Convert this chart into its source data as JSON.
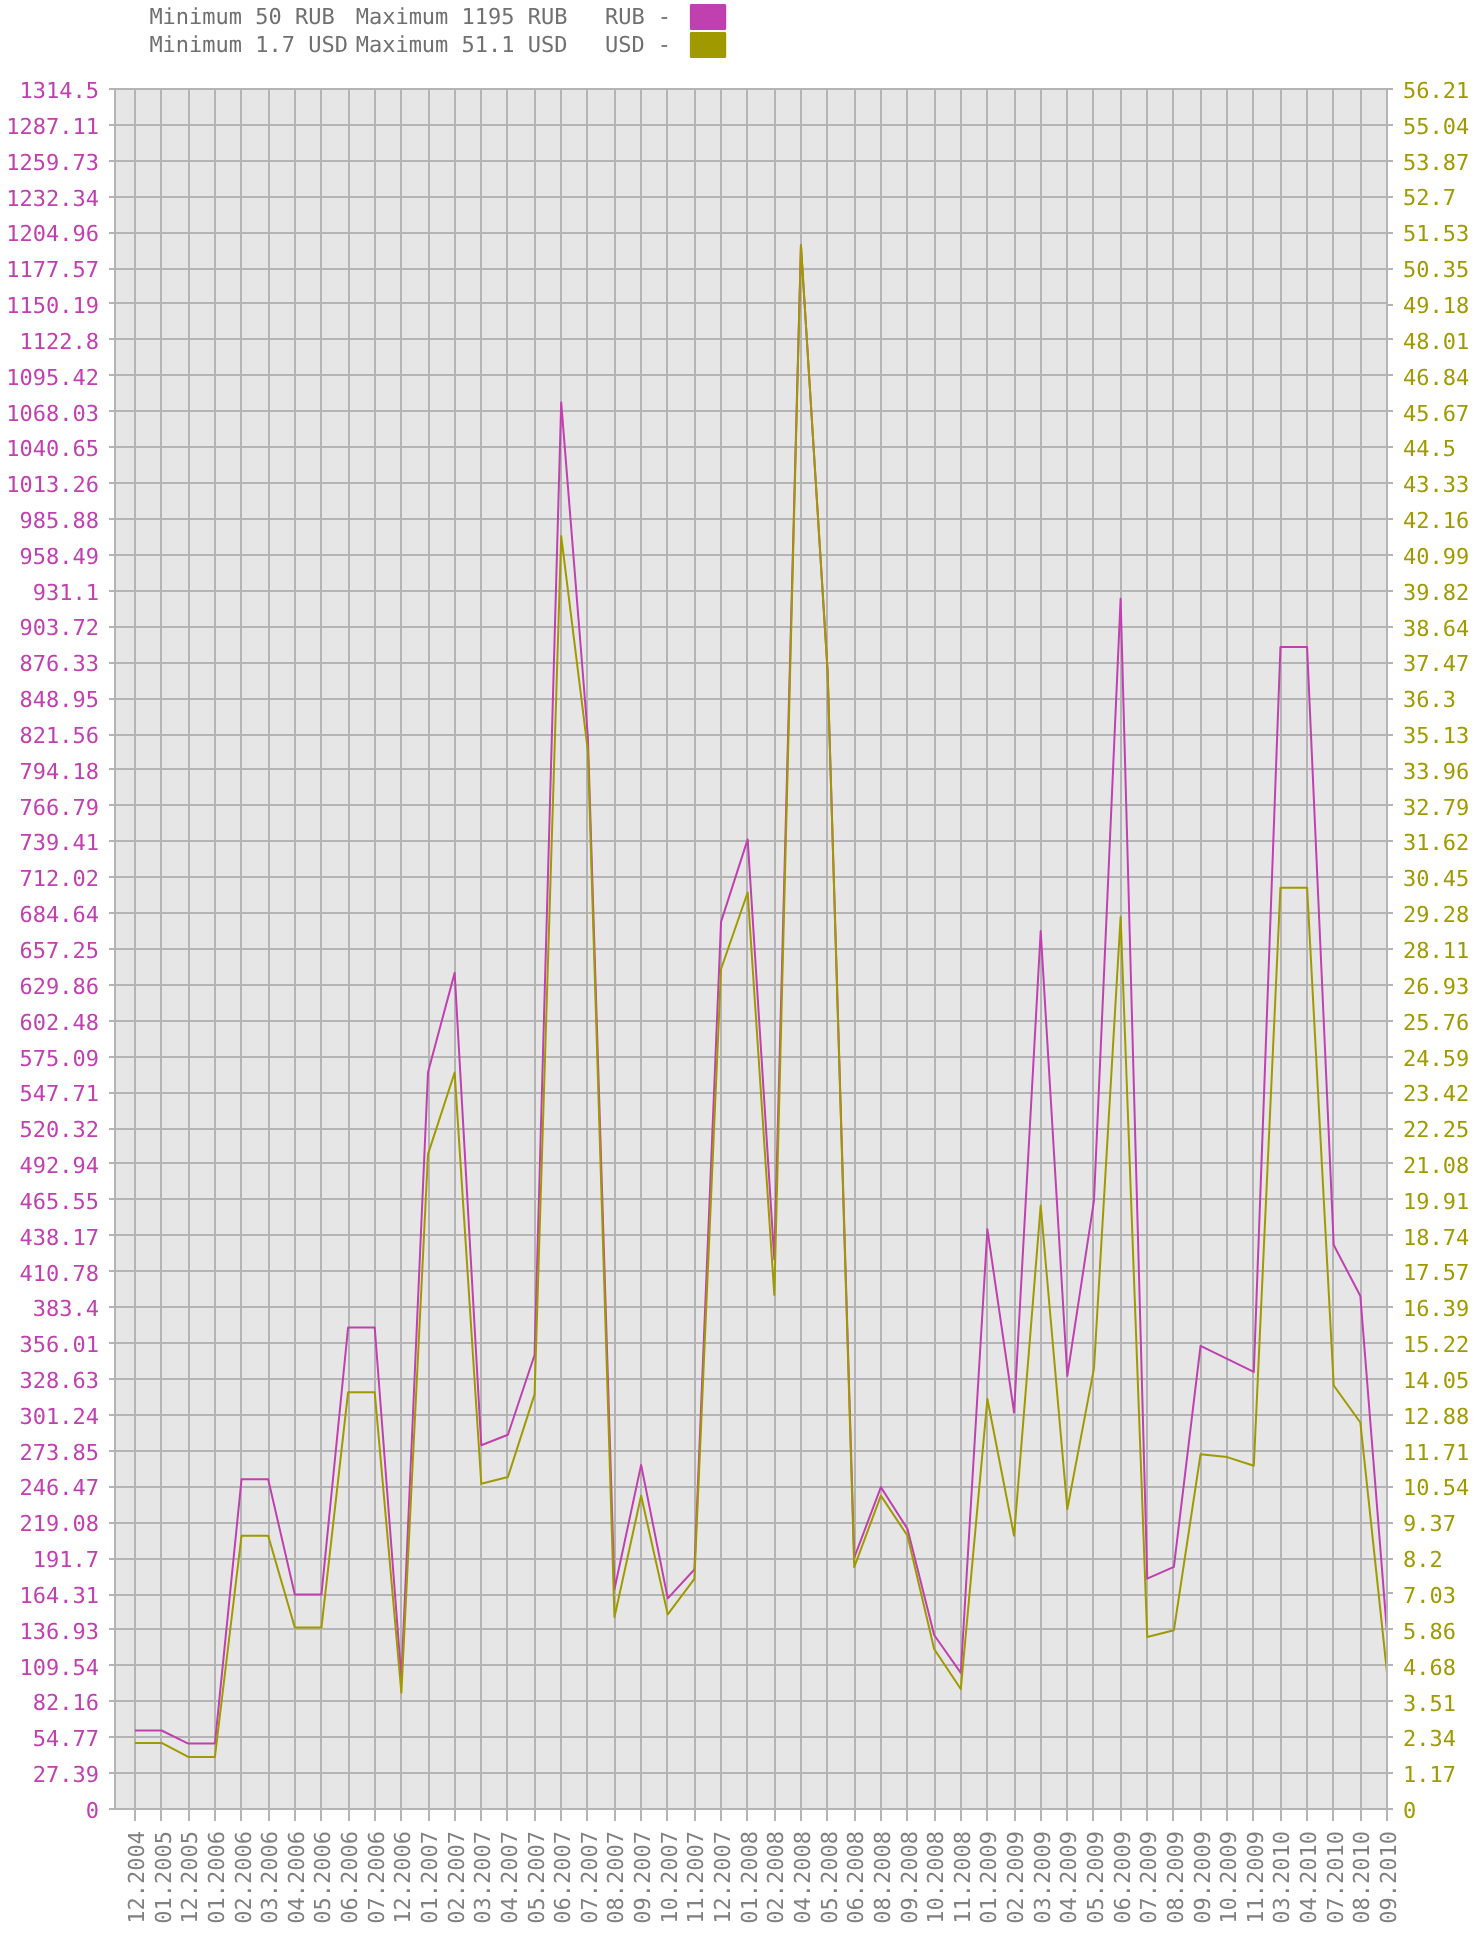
{
  "chart_data": {
    "type": "line",
    "annotations": [
      "Minimum 50 RUB",
      "Minimum 1.7 USD",
      "Maximum 1195 RUB",
      "Maximum 51.1 USD"
    ],
    "categories": [
      "12.2004",
      "01.2005",
      "12.2005",
      "01.2006",
      "02.2006",
      "03.2006",
      "04.2006",
      "05.2006",
      "06.2006",
      "07.2006",
      "12.2006",
      "01.2007",
      "02.2007",
      "03.2007",
      "04.2007",
      "05.2007",
      "06.2007",
      "07.2007",
      "08.2007",
      "09.2007",
      "10.2007",
      "11.2007",
      "12.2007",
      "01.2008",
      "02.2008",
      "04.2008",
      "05.2008",
      "06.2008",
      "08.2008",
      "09.2008",
      "10.2008",
      "11.2008",
      "01.2009",
      "02.2009",
      "03.2009",
      "04.2009",
      "05.2009",
      "06.2009",
      "07.2009",
      "08.2009",
      "09.2009",
      "10.2009",
      "11.2009",
      "03.2010",
      "04.2010",
      "07.2010",
      "08.2010",
      "09.2010"
    ],
    "series": [
      {
        "name": "RUB -",
        "color": "#c040b0",
        "values": [
          60,
          60,
          50,
          50,
          252,
          252,
          164,
          164,
          368,
          368,
          100,
          563,
          639,
          278,
          286,
          347,
          1075,
          820,
          168,
          263,
          161,
          183,
          678,
          741,
          420,
          1195,
          870,
          192,
          246,
          214,
          133,
          104,
          443,
          303,
          671,
          331,
          465,
          925,
          176,
          185,
          354,
          344,
          334,
          888,
          888,
          431,
          392,
          135
        ]
      },
      {
        "name": "USD -",
        "color": "#a09a00",
        "axis": "y2",
        "values": [
          2.16,
          2.16,
          1.7,
          1.7,
          8.93,
          8.93,
          5.93,
          5.93,
          13.62,
          13.62,
          3.8,
          21.4,
          24.07,
          10.63,
          10.85,
          13.55,
          41.6,
          34.6,
          6.27,
          10.24,
          6.36,
          7.52,
          27.45,
          29.95,
          16.8,
          51.1,
          37.2,
          7.9,
          10.24,
          8.93,
          5.23,
          3.92,
          13.4,
          8.93,
          19.72,
          9.8,
          14.4,
          29.15,
          5.62,
          5.84,
          11.59,
          11.5,
          11.22,
          30.11,
          30.11,
          13.84,
          12.63,
          4.46
        ]
      }
    ],
    "ylim": [
      0,
      1314.5
    ],
    "yticks": [
      0,
      27.39,
      54.77,
      82.16,
      109.54,
      136.93,
      164.31,
      191.7,
      219.08,
      246.47,
      273.85,
      301.24,
      328.63,
      356.01,
      383.4,
      410.78,
      438.17,
      465.55,
      492.94,
      520.32,
      547.71,
      575.09,
      602.48,
      629.86,
      657.25,
      684.64,
      712.02,
      739.41,
      766.79,
      794.18,
      821.56,
      848.95,
      876.33,
      903.72,
      931.1,
      958.49,
      985.88,
      1013.26,
      1040.65,
      1068.03,
      1095.42,
      1122.8,
      1150.19,
      1177.57,
      1204.96,
      1232.34,
      1259.73,
      1287.11,
      1314.5
    ],
    "y2lim": [
      0,
      56.21
    ],
    "y2ticks": [
      0,
      1.17,
      2.34,
      3.51,
      4.68,
      5.86,
      7.03,
      8.2,
      9.37,
      10.54,
      11.71,
      12.88,
      14.05,
      15.22,
      16.39,
      17.57,
      18.74,
      19.91,
      21.08,
      22.25,
      23.42,
      24.59,
      25.76,
      26.93,
      28.11,
      29.28,
      30.45,
      31.62,
      32.79,
      33.96,
      35.13,
      36.3,
      37.47,
      38.64,
      39.82,
      40.99,
      42.16,
      43.33,
      44.5,
      45.67,
      46.84,
      48.01,
      49.18,
      50.35,
      51.53,
      52.7,
      53.87,
      55.04,
      56.21
    ],
    "grid": true,
    "legend": "top left",
    "marker": "none",
    "line_style": "solid"
  }
}
